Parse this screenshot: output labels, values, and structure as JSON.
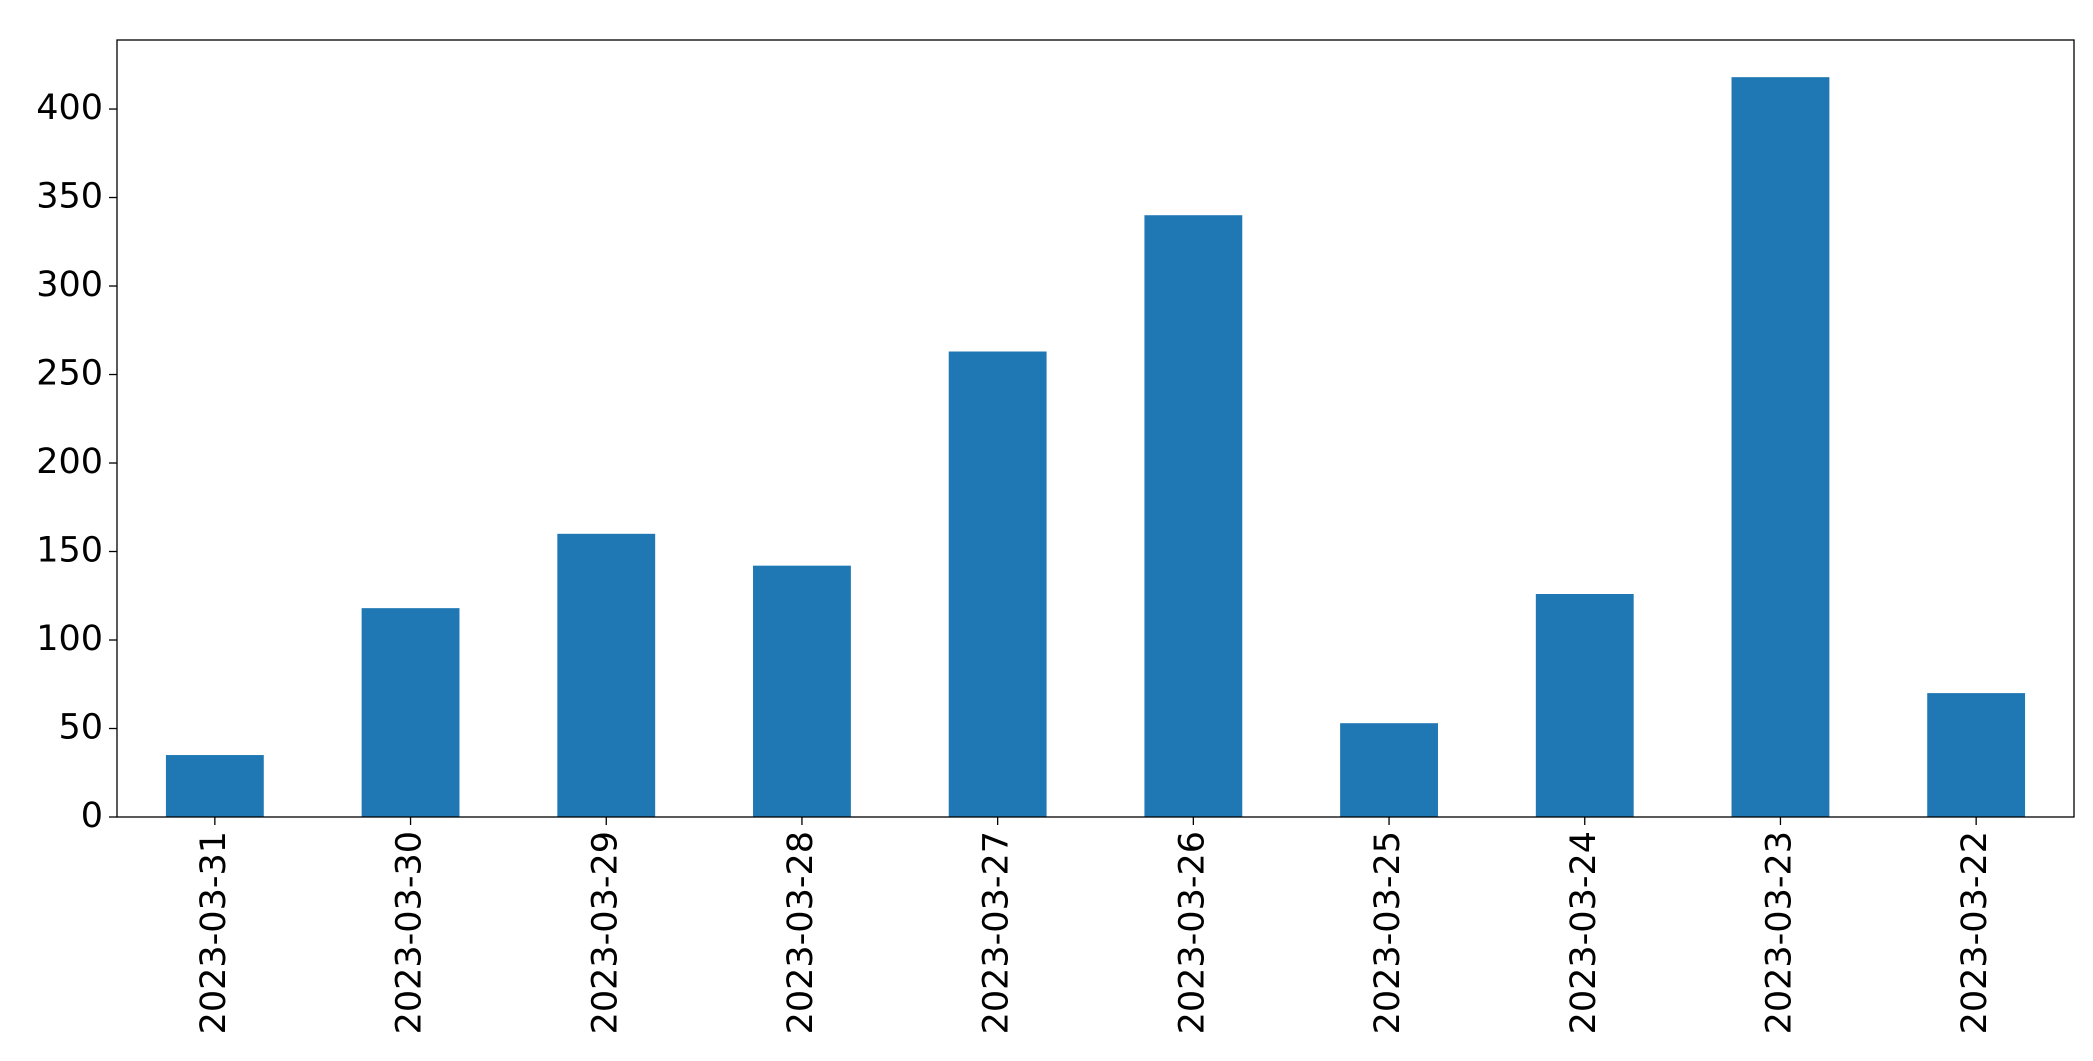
{
  "chart_data": {
    "type": "bar",
    "categories": [
      "2023-03-31",
      "2023-03-30",
      "2023-03-29",
      "2023-03-28",
      "2023-03-27",
      "2023-03-26",
      "2023-03-25",
      "2023-03-24",
      "2023-03-23",
      "2023-03-22"
    ],
    "values": [
      35,
      118,
      160,
      142,
      263,
      340,
      53,
      126,
      418,
      70
    ],
    "color": "#1f77b4",
    "ylim": [
      0,
      439
    ],
    "yticks": [
      0,
      50,
      100,
      150,
      200,
      250,
      300,
      350,
      400
    ],
    "grid": false
  }
}
